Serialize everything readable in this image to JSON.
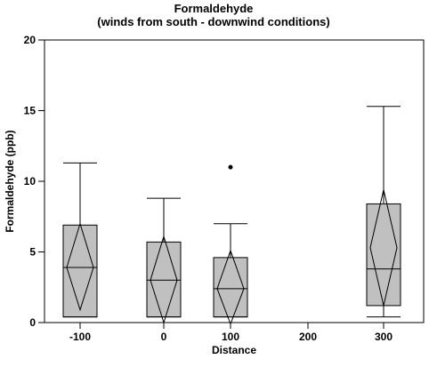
{
  "chart_data": {
    "type": "box",
    "title": "Formaldehyde",
    "subtitle": "(winds from south - downwind conditions)",
    "xlabel": "Distance",
    "ylabel": "Formaldehyde (ppb)",
    "x_ticks": [
      "-100",
      "0",
      "100",
      "200",
      "300"
    ],
    "y_ticks": [
      "0",
      "5",
      "10",
      "15",
      "20"
    ],
    "ylim": [
      0,
      20
    ],
    "grid": false,
    "legend": "none",
    "colors": {
      "box_fill": "#c0c0c0",
      "stroke": "#000000",
      "background": "#ffffff"
    },
    "boxes": [
      {
        "x": "-100",
        "whisker_low": 0.4,
        "q1": 0.4,
        "median": 3.9,
        "q3": 6.9,
        "whisker_high": 11.3,
        "mean_diamond": {
          "low": 0.9,
          "center": 3.9,
          "high": 7.0
        },
        "outliers": []
      },
      {
        "x": "0",
        "whisker_low": 0.4,
        "q1": 0.4,
        "median": 3.0,
        "q3": 5.7,
        "whisker_high": 8.8,
        "mean_diamond": {
          "low": 0.0,
          "center": 3.0,
          "high": 6.1
        },
        "outliers": []
      },
      {
        "x": "100",
        "whisker_low": 0.4,
        "q1": 0.4,
        "median": 2.4,
        "q3": 4.6,
        "whisker_high": 7.0,
        "mean_diamond": {
          "low": -0.1,
          "center": 2.4,
          "high": 5.1
        },
        "outliers": [
          11.0
        ]
      },
      {
        "x": "300",
        "whisker_low": 0.4,
        "q1": 1.2,
        "median": 3.8,
        "q3": 8.4,
        "whisker_high": 15.3,
        "mean_diamond": {
          "low": 1.2,
          "center": 5.3,
          "high": 9.4
        },
        "outliers": []
      }
    ]
  }
}
